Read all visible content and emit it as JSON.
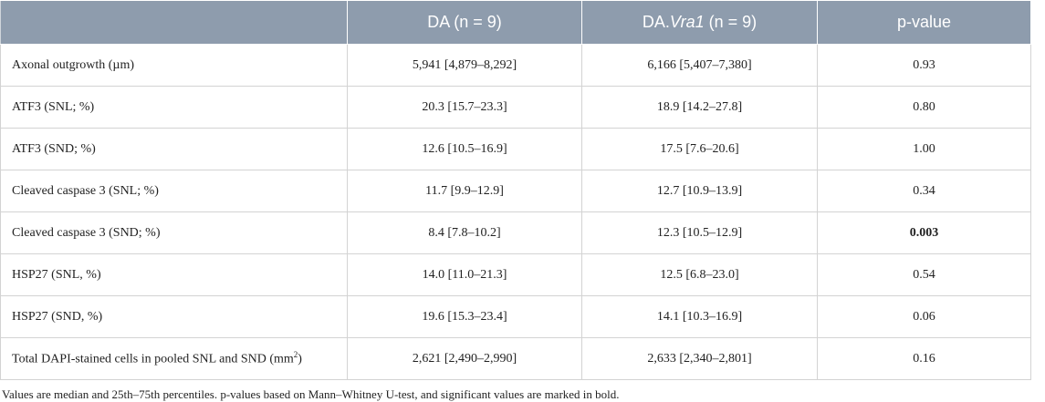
{
  "table": {
    "header": [
      "DA (n = 9)",
      {
        "text": "DA.",
        "italic": "Vra1",
        "after": " (n = 9)"
      },
      "p-value"
    ],
    "rows": [
      [
        "Axonal outgrowth (µm)",
        "5,941 [4,879–8,292]",
        "6,166 [5,407–7,380]",
        "0.93"
      ],
      [
        "ATF3 (SNL; %)",
        "20.3 [15.7–23.3]",
        "18.9 [14.2–27.8]",
        "0.80"
      ],
      [
        "ATF3 (SND; %)",
        "12.6 [10.5–16.9]",
        "17.5 [7.6–20.6]",
        "1.00"
      ],
      [
        "Cleaved caspase 3 (SNL; %)",
        "11.7 [9.9–12.9]",
        "12.7 [10.9–13.9]",
        "0.34"
      ],
      [
        "Cleaved caspase 3 (SND; %)",
        "8.4 [7.8–10.2]",
        "12.3 [10.5–12.9]",
        "0.003"
      ],
      [
        "HSP27 (SNL, %)",
        "14.0 [11.0–21.3]",
        "12.5 [6.8–23.0]",
        "0.54"
      ],
      [
        "HSP27 (SND, %)",
        "19.6 [15.3–23.4]",
        "14.1 [10.3–16.9]",
        "0.06"
      ],
      [
        {
          "text": "Total DAPI-stained cells in pooled SNL and SND (mm",
          "sup": "2",
          "after": ")"
        },
        "2,621 [2,490–2,990]",
        "2,633 [2,340–2,801]",
        "0.16"
      ]
    ],
    "footnote": "Values are median and 25th–75th percentiles. p-values based on Mann–Whitney U-test, and significant values are marked in bold."
  }
}
